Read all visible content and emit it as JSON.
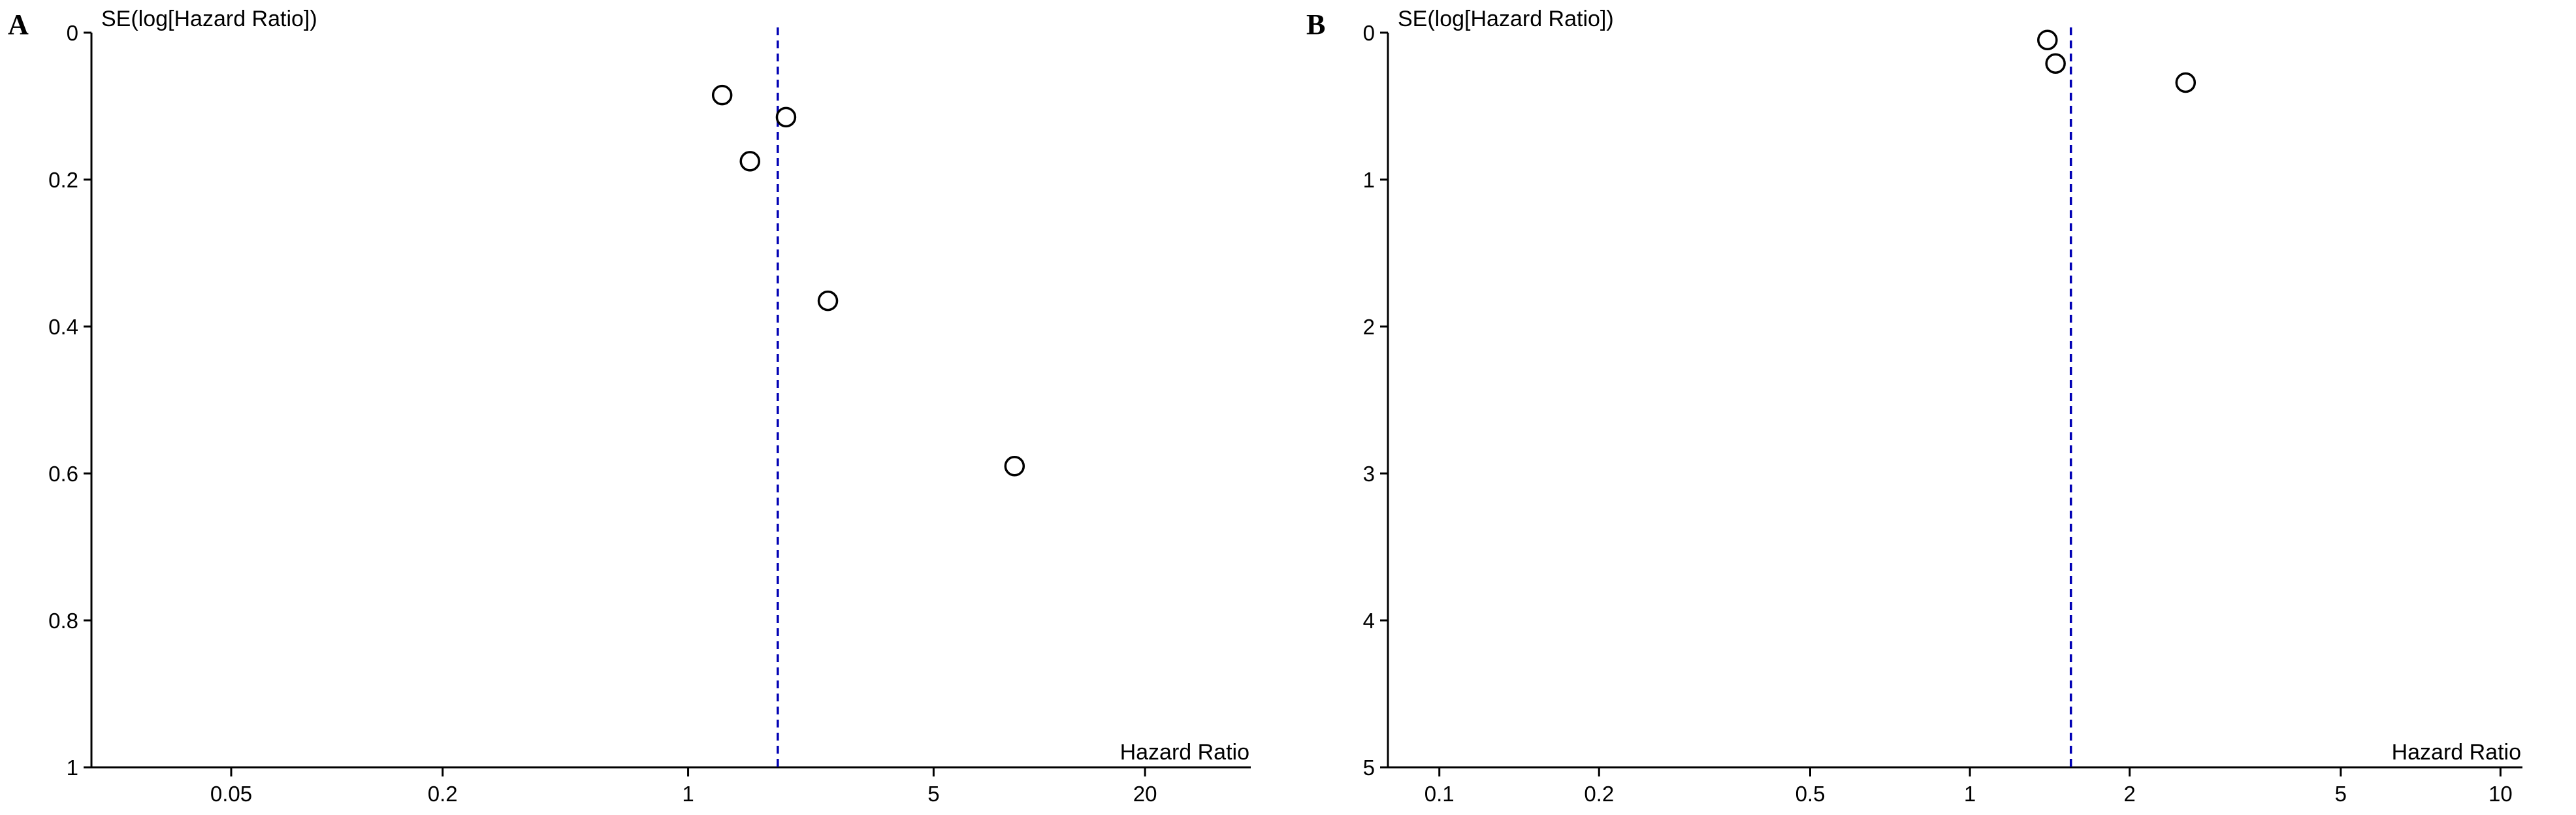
{
  "chart_data": [
    {
      "panel": "A",
      "type": "scatter",
      "ylabel": "SE(log[Hazard Ratio])",
      "xlabel": "Hazard Ratio",
      "x_scale": "log",
      "y_inverted": true,
      "xlim": [
        0.02,
        40
      ],
      "ylim": [
        0,
        1
      ],
      "x_ticks": [
        0.05,
        0.2,
        1,
        5,
        20
      ],
      "x_tick_labels": [
        "0.05",
        "0.2",
        "1",
        "5",
        "20"
      ],
      "y_ticks": [
        0,
        0.2,
        0.4,
        0.6,
        0.8,
        1
      ],
      "y_tick_labels": [
        "0",
        "0.2",
        "0.4",
        "0.6",
        "0.8",
        "1"
      ],
      "reference_line": 1.8,
      "points": [
        {
          "x": 1.25,
          "y": 0.085
        },
        {
          "x": 1.5,
          "y": 0.175
        },
        {
          "x": 1.9,
          "y": 0.115
        },
        {
          "x": 2.5,
          "y": 0.365
        },
        {
          "x": 8.5,
          "y": 0.59
        }
      ]
    },
    {
      "panel": "B",
      "type": "scatter",
      "ylabel": "SE(log[Hazard Ratio])",
      "xlabel": "Hazard Ratio",
      "x_scale": "log",
      "y_inverted": true,
      "xlim": [
        0.08,
        11
      ],
      "ylim": [
        0,
        5
      ],
      "x_ticks": [
        0.1,
        0.2,
        0.5,
        1,
        2,
        5,
        10
      ],
      "x_tick_labels": [
        "0.1",
        "0.2",
        "0.5",
        "1",
        "2",
        "5",
        "10"
      ],
      "y_ticks": [
        0,
        1,
        2,
        3,
        4,
        5
      ],
      "y_tick_labels": [
        "0",
        "1",
        "2",
        "3",
        "4",
        "5"
      ],
      "reference_line": 1.55,
      "points": [
        {
          "x": 1.4,
          "y": 0.05
        },
        {
          "x": 1.45,
          "y": 0.21
        },
        {
          "x": 2.55,
          "y": 0.34
        }
      ]
    }
  ]
}
